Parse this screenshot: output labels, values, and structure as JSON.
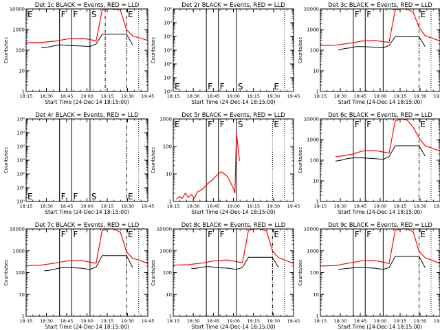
{
  "figure": {
    "xlabel": "Start Time (24-Dec-14 18:15:00)",
    "ylabel": "Counts/sec",
    "x_ticks": [
      "18:15",
      "18:30",
      "18:45",
      "19:00",
      "19:15",
      "19:30",
      "19:45"
    ]
  },
  "colors": {
    "events": "#000000",
    "lld": "#ff0000",
    "axes": "#000000"
  },
  "chart_data": [
    {
      "type": "line",
      "title": "Det 1c BLACK = Events, RED = LLD",
      "x_range_min": [
        0,
        40
      ],
      "y_scale": "log",
      "ylim": [
        1,
        10000
      ],
      "y_ticks": [
        "1",
        "10",
        "100",
        "1000",
        "10000"
      ],
      "vlines_solid": [
        11,
        15,
        21
      ],
      "vlines_dashdot": [
        26,
        33
      ],
      "vlines_dotted": [
        37
      ],
      "markers": [
        {
          "t": 0,
          "label": "E"
        },
        {
          "t": 11,
          "label": "F"
        },
        {
          "t": 15,
          "label": "F"
        },
        {
          "t": 21,
          "label": "S"
        },
        {
          "t": 33,
          "label": "E"
        }
      ],
      "series": [
        {
          "key": "lld",
          "x": [
            0,
            5,
            10,
            14,
            18,
            21,
            23,
            25,
            27,
            29,
            31,
            33,
            35,
            37,
            40
          ],
          "y": [
            230,
            240,
            280,
            360,
            380,
            330,
            280,
            9000,
            10000,
            10000,
            8500,
            1000,
            500,
            400,
            300
          ]
        },
        {
          "key": "events",
          "x": [
            5,
            7,
            9,
            11,
            14,
            18,
            21,
            23,
            25,
            33,
            35
          ],
          "y": [
            130,
            140,
            160,
            180,
            170,
            160,
            150,
            200,
            600,
            600,
            180
          ]
        }
      ]
    },
    {
      "type": "line",
      "title": "Det 2r BLACK = Events, RED = LLD",
      "x_range_min": [
        0,
        40
      ],
      "y_scale": "log",
      "ylim": [
        1,
        1000000
      ],
      "y_ticks": [
        "10⁰",
        "10¹",
        "10²",
        "10³",
        "10⁴",
        "10⁵",
        "10⁶"
      ],
      "vlines_solid": [
        11,
        15,
        21
      ],
      "vlines_dashdot": [],
      "vlines_dotted": [
        37
      ],
      "markers": [
        {
          "t": 0,
          "label": "E"
        },
        {
          "t": 11,
          "label": "F"
        },
        {
          "t": 15,
          "label": "F"
        },
        {
          "t": 21,
          "label": "S"
        },
        {
          "t": 33,
          "label": "E"
        }
      ],
      "series": []
    },
    {
      "type": "line",
      "title": "Det 3c BLACK = Events, RED = LLD",
      "x_range_min": [
        0,
        40
      ],
      "y_scale": "log",
      "ylim": [
        1,
        10000
      ],
      "y_ticks": [
        "1",
        "10",
        "100",
        "1000",
        "10000"
      ],
      "vlines_solid": [
        11,
        15,
        21
      ],
      "vlines_dashdot": [
        33
      ],
      "vlines_dotted": [
        37
      ],
      "markers": [
        {
          "t": 11,
          "label": "F"
        },
        {
          "t": 15,
          "label": "F"
        },
        {
          "t": 33,
          "label": "E"
        }
      ],
      "series": [
        {
          "key": "lld",
          "x": [
            0,
            5,
            10,
            14,
            18,
            21,
            23,
            25,
            27,
            29,
            31,
            33,
            35,
            37,
            40
          ],
          "y": [
            170,
            175,
            220,
            280,
            300,
            260,
            240,
            9000,
            10000,
            10000,
            7000,
            1300,
            500,
            400,
            280
          ]
        },
        {
          "key": "events",
          "x": [
            6,
            8,
            10,
            12,
            14,
            18,
            21,
            23,
            25,
            33,
            35
          ],
          "y": [
            100,
            120,
            130,
            150,
            150,
            140,
            130,
            170,
            450,
            450,
            150
          ]
        }
      ]
    },
    {
      "type": "line",
      "title": "Det 4r BLACK = Events, RED = LLD",
      "x_range_min": [
        0,
        40
      ],
      "y_scale": "log",
      "ylim": [
        1,
        1000000
      ],
      "y_ticks": [
        "10⁰",
        "10¹",
        "10²",
        "10³",
        "10⁴",
        "10⁵",
        "10⁶"
      ],
      "vlines_solid": [
        11,
        15,
        21
      ],
      "vlines_dashdot": [
        33
      ],
      "vlines_dotted": [
        37
      ],
      "markers": [
        {
          "t": 0,
          "label": "E"
        },
        {
          "t": 11,
          "label": "F"
        },
        {
          "t": 15,
          "label": "F"
        },
        {
          "t": 21,
          "label": "S"
        },
        {
          "t": 33,
          "label": "E"
        }
      ],
      "series": []
    },
    {
      "type": "line",
      "title": "Det 5r BLACK = Events, RED = LLD",
      "x_range_min": [
        0,
        40
      ],
      "y_scale": "log",
      "ylim": [
        1,
        1000
      ],
      "y_ticks": [
        "1",
        "10",
        "100",
        "1000"
      ],
      "vlines_solid": [
        11,
        15,
        21
      ],
      "vlines_dashdot": [],
      "vlines_dotted": [
        33,
        37
      ],
      "markers": [
        {
          "t": 0,
          "label": "E"
        },
        {
          "t": 11,
          "label": "F"
        },
        {
          "t": 15,
          "label": "F"
        },
        {
          "t": 21,
          "label": "S"
        },
        {
          "t": 33,
          "label": "E"
        }
      ],
      "series": [
        {
          "key": "lld",
          "x": [
            1,
            2,
            3,
            4,
            5,
            6,
            7,
            8,
            9,
            10,
            11,
            12,
            13,
            14,
            15,
            16,
            17,
            18,
            19,
            20,
            20.5,
            21,
            21.5,
            22
          ],
          "y": [
            1.2,
            1.5,
            1.3,
            2.0,
            1.4,
            1.8,
            1.3,
            2.2,
            2.5,
            3.0,
            4.0,
            5.0,
            6.0,
            8.0,
            10.0,
            12.0,
            10.0,
            8.0,
            5.0,
            3.0,
            2.0,
            300.0,
            100.0,
            30.0
          ]
        }
      ]
    },
    {
      "type": "line",
      "title": "Det 6c BLACK = Events, RED = LLD",
      "x_range_min": [
        0,
        40
      ],
      "y_scale": "log",
      "ylim": [
        1,
        10000
      ],
      "y_ticks": [
        "1",
        "10",
        "100",
        "1000",
        "10000"
      ],
      "vlines_solid": [
        11,
        15,
        21
      ],
      "vlines_dashdot": [
        33
      ],
      "vlines_dotted": [
        37
      ],
      "markers": [
        {
          "t": 11,
          "label": "F"
        },
        {
          "t": 15,
          "label": "F"
        },
        {
          "t": 33,
          "label": "E"
        }
      ],
      "series": [
        {
          "key": "lld",
          "x": [
            5,
            8,
            11,
            14,
            18,
            21,
            23,
            25,
            27,
            29,
            31,
            33,
            35,
            37,
            40
          ],
          "y": [
            150,
            165,
            200,
            280,
            300,
            250,
            220,
            8000,
            10000,
            9000,
            4000,
            1200,
            500,
            400,
            280
          ]
        },
        {
          "key": "events",
          "x": [
            5,
            7,
            9,
            11,
            14,
            18,
            21,
            23,
            25,
            33,
            35
          ],
          "y": [
            90,
            100,
            120,
            130,
            130,
            120,
            110,
            150,
            500,
            500,
            160
          ]
        }
      ]
    },
    {
      "type": "line",
      "title": "Det 7c BLACK = Events, RED = LLD",
      "x_range_min": [
        0,
        40
      ],
      "y_scale": "log",
      "ylim": [
        1,
        10000
      ],
      "y_ticks": [
        "1",
        "10",
        "100",
        "1000",
        "10000"
      ],
      "vlines_solid": [
        11,
        15,
        21
      ],
      "vlines_dashdot": [
        33
      ],
      "vlines_dotted": [
        37
      ],
      "markers": [
        {
          "t": 11,
          "label": "F"
        },
        {
          "t": 15,
          "label": "F"
        },
        {
          "t": 33,
          "label": "E"
        }
      ],
      "series": [
        {
          "key": "lld",
          "x": [
            0,
            5,
            10,
            14,
            18,
            21,
            23,
            25,
            27,
            29,
            31,
            33,
            35,
            37,
            40
          ],
          "y": [
            210,
            220,
            280,
            350,
            360,
            300,
            270,
            8500,
            10000,
            10000,
            7000,
            900,
            450,
            380,
            260
          ]
        },
        {
          "key": "events",
          "x": [
            6,
            8,
            10,
            12,
            14,
            18,
            21,
            23,
            25,
            33,
            35
          ],
          "y": [
            120,
            130,
            150,
            170,
            170,
            160,
            140,
            180,
            600,
            600,
            170
          ]
        }
      ]
    },
    {
      "type": "line",
      "title": "Det 8c BLACK = Events, RED = LLD",
      "x_range_min": [
        0,
        40
      ],
      "y_scale": "log",
      "ylim": [
        1,
        10000
      ],
      "y_ticks": [
        "1",
        "10",
        "100",
        "1000",
        "10000"
      ],
      "vlines_solid": [
        11,
        15,
        21
      ],
      "vlines_dashdot": [
        33
      ],
      "vlines_dotted": [
        37
      ],
      "markers": [
        {
          "t": 11,
          "label": "F"
        },
        {
          "t": 15,
          "label": "F"
        },
        {
          "t": 33,
          "label": "E"
        }
      ],
      "series": [
        {
          "key": "lld",
          "x": [
            0,
            5,
            10,
            14,
            18,
            21,
            23,
            25,
            27,
            29,
            31,
            33,
            35,
            37,
            40
          ],
          "y": [
            220,
            230,
            280,
            350,
            380,
            320,
            280,
            8500,
            10000,
            10000,
            8000,
            1000,
            480,
            380,
            260
          ]
        },
        {
          "key": "events",
          "x": [
            6,
            8,
            10,
            12,
            14,
            18,
            21,
            23,
            25,
            33,
            35
          ],
          "y": [
            150,
            160,
            180,
            190,
            170,
            160,
            140,
            170,
            500,
            500,
            170
          ]
        }
      ]
    },
    {
      "type": "line",
      "title": "Det 9c BLACK = Events, RED = LLD",
      "x_range_min": [
        0,
        40
      ],
      "y_scale": "log",
      "ylim": [
        1,
        10000
      ],
      "y_ticks": [
        "1",
        "10",
        "100",
        "1000",
        "10000"
      ],
      "vlines_solid": [
        11,
        15,
        21
      ],
      "vlines_dashdot": [
        33
      ],
      "vlines_dotted": [
        37
      ],
      "markers": [
        {
          "t": 11,
          "label": "F"
        },
        {
          "t": 15,
          "label": "F"
        },
        {
          "t": 33,
          "label": "E"
        }
      ],
      "series": [
        {
          "key": "lld",
          "x": [
            0,
            5,
            10,
            14,
            18,
            21,
            23,
            25,
            27,
            29,
            31,
            33,
            35,
            37,
            40
          ],
          "y": [
            200,
            210,
            280,
            350,
            360,
            300,
            260,
            8500,
            10000,
            10000,
            7500,
            950,
            480,
            380,
            260
          ]
        },
        {
          "key": "events",
          "x": [
            6,
            8,
            10,
            12,
            14,
            18,
            21,
            23,
            25,
            33,
            35
          ],
          "y": [
            140,
            150,
            160,
            170,
            170,
            160,
            140,
            170,
            550,
            550,
            170
          ]
        }
      ]
    }
  ]
}
